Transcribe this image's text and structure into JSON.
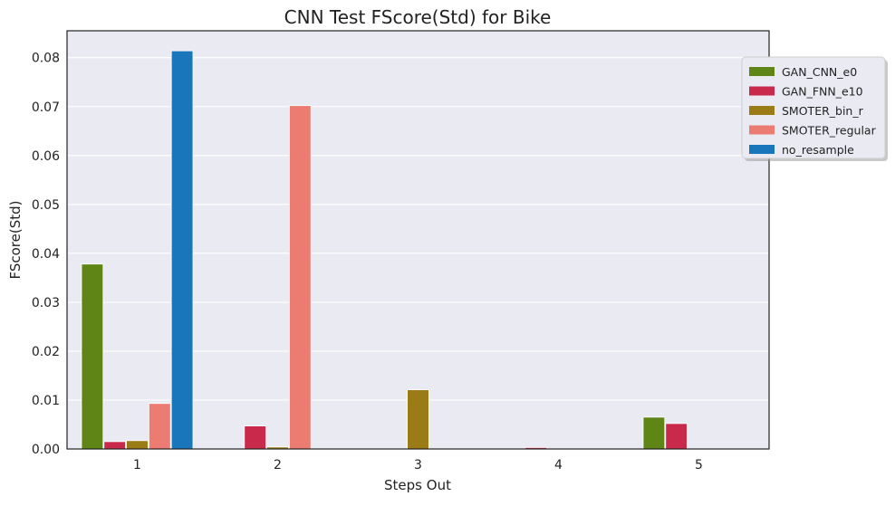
{
  "chart_data": {
    "type": "bar",
    "title": "CNN Test FScore(Std) for Bike",
    "xlabel": "Steps Out",
    "ylabel": "FScore(Std)",
    "ylim": [
      0,
      0.0855
    ],
    "yticks": [
      "0.00",
      "0.01",
      "0.02",
      "0.03",
      "0.04",
      "0.05",
      "0.06",
      "0.07",
      "0.08"
    ],
    "ytick_values": [
      0,
      0.01,
      0.02,
      0.03,
      0.04,
      0.05,
      0.06,
      0.07,
      0.08
    ],
    "categories": [
      "1",
      "2",
      "3",
      "4",
      "5"
    ],
    "grid": true,
    "legend_position": "upper-right",
    "series": [
      {
        "name": "GAN_CNN_e0",
        "color": "#5e8515",
        "values": [
          0.0378,
          0.0,
          0.0,
          0.0,
          0.0065
        ]
      },
      {
        "name": "GAN_FNN_e10",
        "color": "#c9294b",
        "values": [
          0.0015,
          0.0047,
          0.0,
          0.0003,
          0.0052
        ]
      },
      {
        "name": "SMOTER_bin_r",
        "color": "#9a7b15",
        "values": [
          0.0017,
          0.0004,
          0.0121,
          0.0,
          0.0
        ]
      },
      {
        "name": "SMOTER_regular",
        "color": "#ec7b72",
        "values": [
          0.0093,
          0.0702,
          0.0,
          0.0,
          0.0
        ]
      },
      {
        "name": "no_resample",
        "color": "#1a76bb",
        "values": [
          0.0814,
          0.0,
          0.0,
          0.0,
          0.0
        ]
      }
    ]
  }
}
